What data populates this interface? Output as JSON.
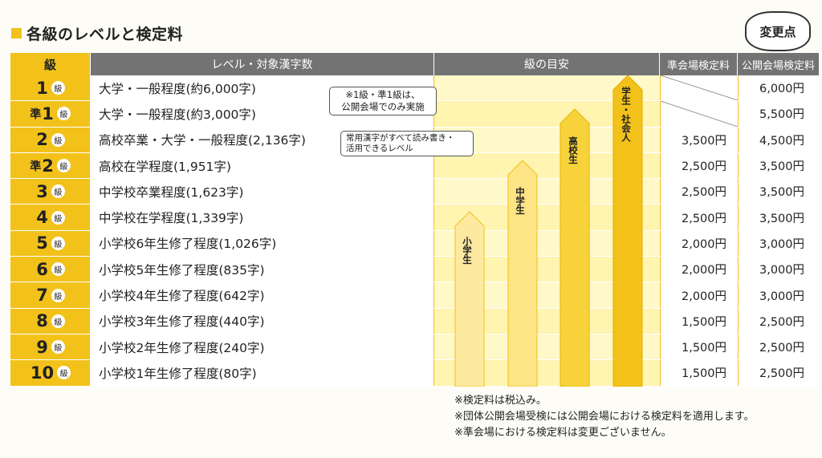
{
  "title": "各級のレベルと検定料",
  "badge": "変更点",
  "headers": {
    "grade": "級",
    "level": "レベル・対象漢字数",
    "guide": "級の目安",
    "fee_semi": "準会場検定料",
    "fee_public": "公開会場検定料"
  },
  "rows": [
    {
      "prefix": "",
      "num": "1",
      "kyu": "級",
      "level": "大学・一般程度(約6,000字)",
      "fee_semi": "",
      "fee_public": "6,000円"
    },
    {
      "prefix": "準",
      "num": "1",
      "kyu": "級",
      "level": "大学・一般程度(約3,000字)",
      "fee_semi": "",
      "fee_public": "5,500円"
    },
    {
      "prefix": "",
      "num": "2",
      "kyu": "級",
      "level": "高校卒業・大学・一般程度(2,136字)",
      "fee_semi": "3,500円",
      "fee_public": "4,500円"
    },
    {
      "prefix": "準",
      "num": "2",
      "kyu": "級",
      "level": "高校在学程度(1,951字)",
      "fee_semi": "2,500円",
      "fee_public": "3,500円"
    },
    {
      "prefix": "",
      "num": "3",
      "kyu": "級",
      "level": "中学校卒業程度(1,623字)",
      "fee_semi": "2,500円",
      "fee_public": "3,500円"
    },
    {
      "prefix": "",
      "num": "4",
      "kyu": "級",
      "level": "中学校在学程度(1,339字)",
      "fee_semi": "2,500円",
      "fee_public": "3,500円"
    },
    {
      "prefix": "",
      "num": "5",
      "kyu": "級",
      "level": "小学校6年生修了程度(1,026字)",
      "fee_semi": "2,000円",
      "fee_public": "3,000円"
    },
    {
      "prefix": "",
      "num": "6",
      "kyu": "級",
      "level": "小学校5年生修了程度(835字)",
      "fee_semi": "2,000円",
      "fee_public": "3,000円"
    },
    {
      "prefix": "",
      "num": "7",
      "kyu": "級",
      "level": "小学校4年生修了程度(642字)",
      "fee_semi": "2,000円",
      "fee_public": "3,000円"
    },
    {
      "prefix": "",
      "num": "8",
      "kyu": "級",
      "level": "小学校3年生修了程度(440字)",
      "fee_semi": "1,500円",
      "fee_public": "2,500円"
    },
    {
      "prefix": "",
      "num": "9",
      "kyu": "級",
      "level": "小学校2年生修了程度(240字)",
      "fee_semi": "1,500円",
      "fee_public": "2,500円"
    },
    {
      "prefix": "",
      "num": "10",
      "kyu": "級",
      "level": "小学校1年生修了程度(80字)",
      "fee_semi": "1,500円",
      "fee_public": "2,500円"
    }
  ],
  "notes": {
    "note1_line1": "※1級・準1級は、",
    "note1_line2": "公開会場でのみ実施",
    "note2_line1": "常用漢字がすべて読み書き・",
    "note2_line2": "活用できるレベル"
  },
  "guide_labels": {
    "elementary": "小学生",
    "junior_high": "中学生",
    "high_school": "高校生",
    "adult": "学生・社会人"
  },
  "footnotes": [
    "※検定料は税込み。",
    "※団体公開会場受検には公開会場における検定料を適用します。",
    "※準会場における検定料は変更ございません。"
  ],
  "colors": {
    "accent_yellow": "#f2c21b",
    "header_gray": "#737373"
  }
}
